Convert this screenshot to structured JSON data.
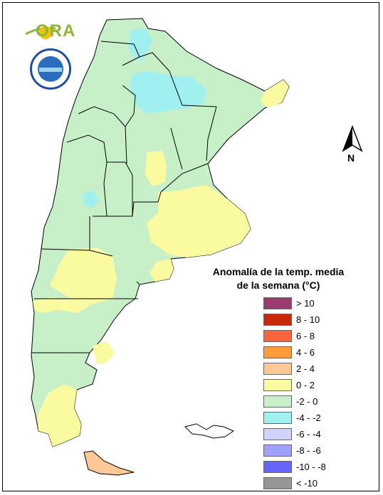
{
  "logo": {
    "text": "ORA"
  },
  "legend": {
    "title_line1": "Anomalía de la temp. media",
    "title_line2": "de la semana (°C)",
    "items": [
      {
        "label": "> 10",
        "color": "#9c3c6e"
      },
      {
        "label": "8 - 10",
        "color": "#c8280a"
      },
      {
        "label": "6 - 8",
        "color": "#ff643c"
      },
      {
        "label": "4 - 6",
        "color": "#ff9c3c"
      },
      {
        "label": "2 - 4",
        "color": "#ffc896"
      },
      {
        "label": "0 - 2",
        "color": "#fafaa0"
      },
      {
        "label": "-2 - 0",
        "color": "#c8f0c8"
      },
      {
        "label": "-4 - -2",
        "color": "#a0f0f0"
      },
      {
        "label": "-6 - -4",
        "color": "#d2d2ff"
      },
      {
        "label": "-8 - -6",
        "color": "#a0a0ff"
      },
      {
        "label": "-10 - -8",
        "color": "#6464ff"
      },
      {
        "label": "< -10",
        "color": "#969696"
      }
    ]
  },
  "north_label": "N"
}
